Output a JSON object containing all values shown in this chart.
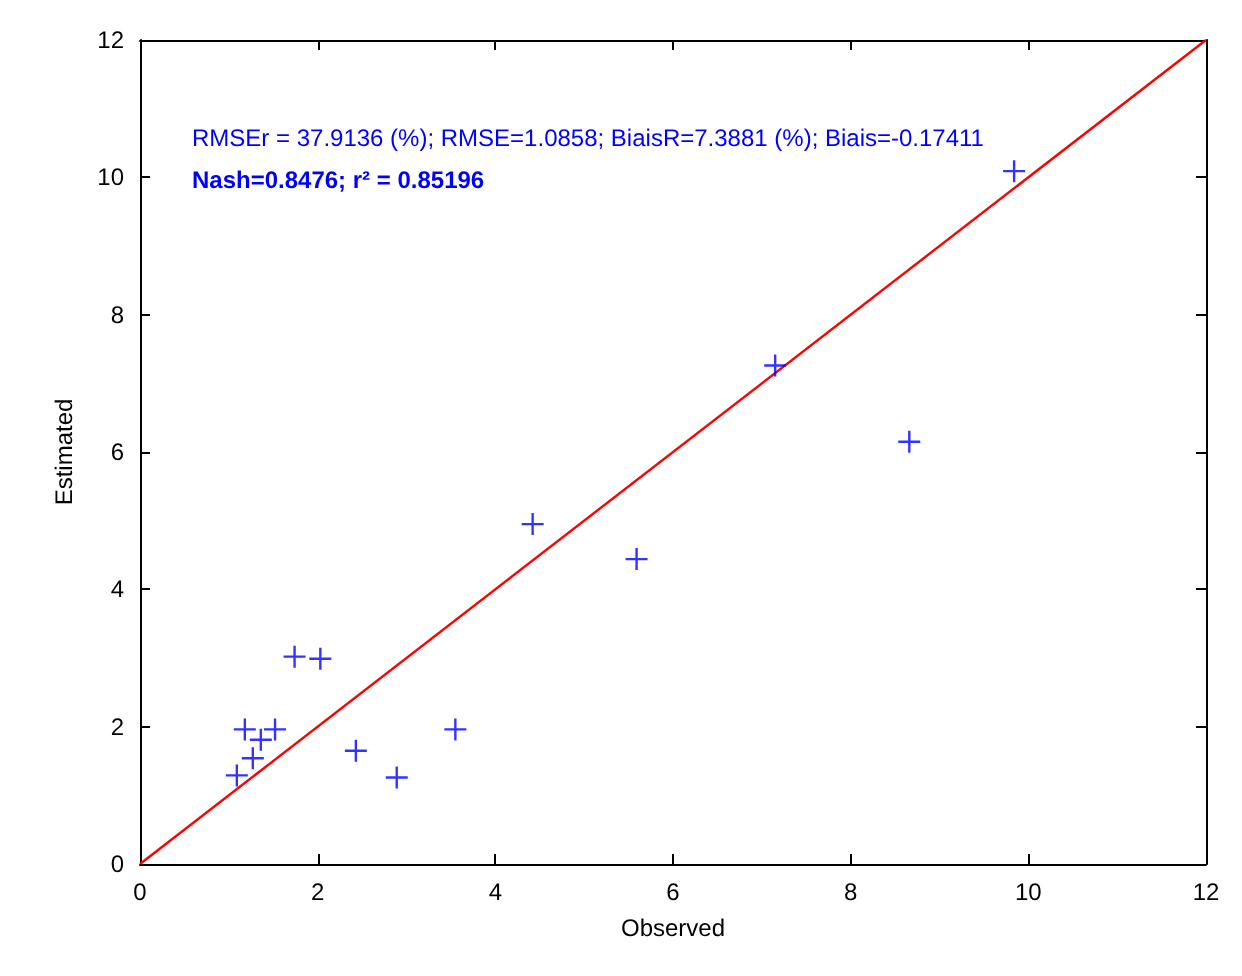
{
  "chart_data": {
    "type": "scatter",
    "xlabel": "Observed",
    "ylabel": "Estimated",
    "annotations": [
      "RMSEr = 37.9136 (%); RMSE=1.0858; BiaisR=7.3881 (%); Biais=-0.17411",
      "Nash=0.8476; r² = 0.85196"
    ],
    "xlim": [
      0,
      12
    ],
    "ylim": [
      0,
      12
    ],
    "xticks": [
      0,
      2,
      4,
      6,
      8,
      10,
      12
    ],
    "yticks": [
      0,
      2,
      4,
      6,
      8,
      10,
      12
    ],
    "marker": "cross",
    "series": [
      {
        "color": "#0000ff",
        "x": [
          1.09,
          1.18,
          1.27,
          1.36,
          1.52,
          1.74,
          2.03,
          2.43,
          2.89,
          3.55,
          4.42,
          5.59,
          7.15,
          8.66,
          9.84
        ],
        "values": [
          1.29,
          1.96,
          1.54,
          1.81,
          1.96,
          3.02,
          2.99,
          1.65,
          1.26,
          1.96,
          4.95,
          4.44,
          7.26,
          6.15,
          10.09
        ]
      },
      {
        "type": "line",
        "color": "#ff0000",
        "marker": "none",
        "line_style": "solid",
        "x": [
          0,
          12
        ],
        "values": [
          0,
          12
        ]
      }
    ]
  }
}
